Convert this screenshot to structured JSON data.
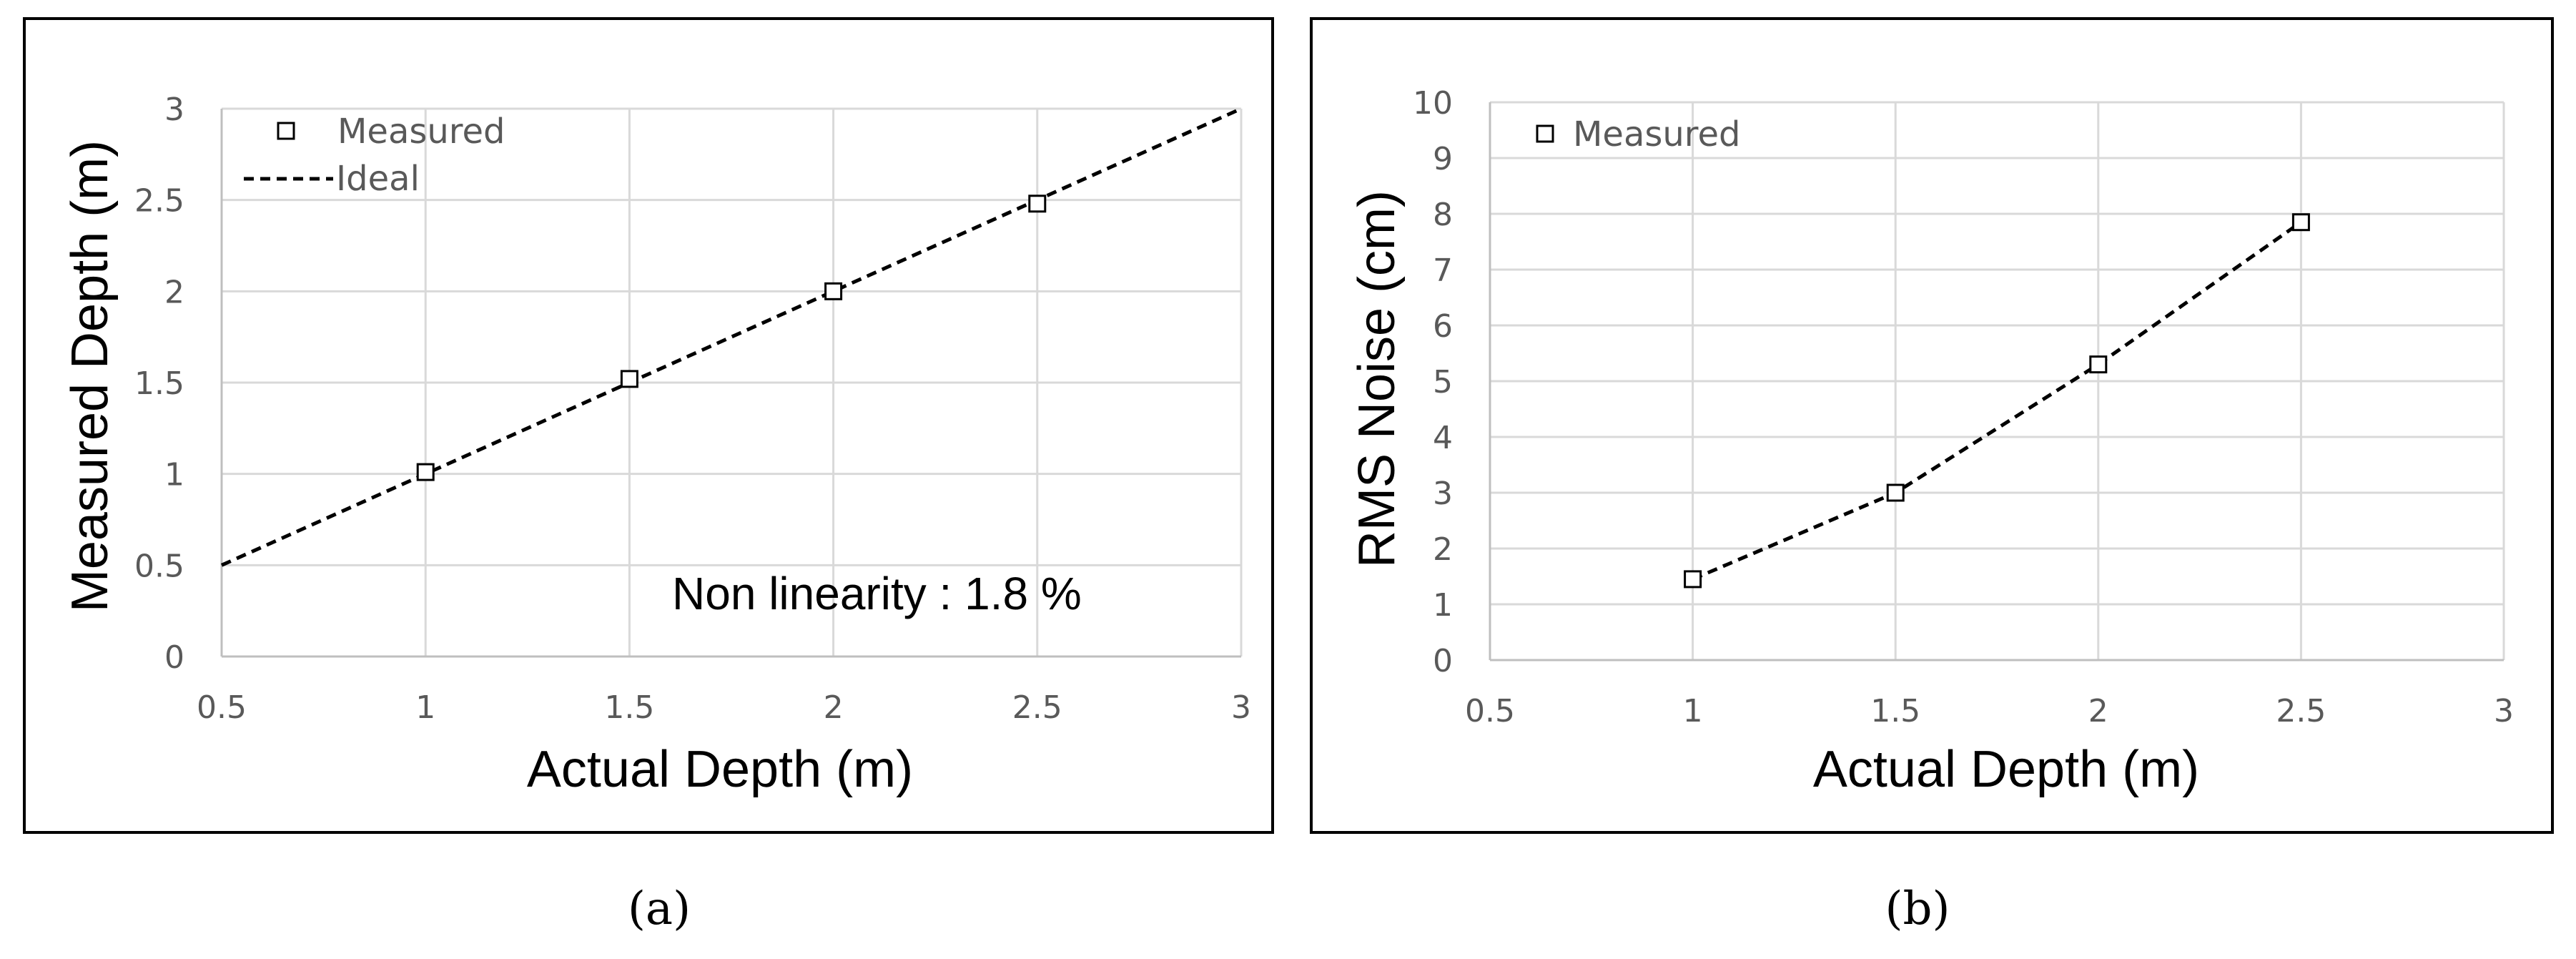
{
  "colors": {
    "grid": "#d9d9d9",
    "axis": "#bfbfbf",
    "frame": "#000000",
    "series": "#000000",
    "tick_text": "#595959"
  },
  "chart_data": [
    {
      "type": "scatter",
      "xlabel": "Actual Depth (m)",
      "ylabel": "Measured Depth (m)",
      "xlim": [
        0.5,
        3
      ],
      "ylim": [
        0,
        3
      ],
      "x_ticks": [
        0.5,
        1,
        1.5,
        2,
        2.5,
        3
      ],
      "y_ticks": [
        0,
        0.5,
        1,
        1.5,
        2,
        2.5,
        3
      ],
      "x_tick_labels": [
        "0.5",
        "1",
        "1.5",
        "2",
        "2.5",
        "3"
      ],
      "y_tick_labels": [
        "0",
        "0.5",
        "1",
        "1.5",
        "2",
        "2.5",
        "3"
      ],
      "grid": true,
      "legend_position": "top-left",
      "series": [
        {
          "name": "Measured",
          "style": "marker-square",
          "x": [
            1,
            1.5,
            2,
            2.5
          ],
          "y": [
            1.01,
            1.52,
            2.0,
            2.48
          ]
        },
        {
          "name": "Ideal",
          "style": "dashed-line",
          "x": [
            0.5,
            3
          ],
          "y": [
            0.5,
            3
          ]
        }
      ],
      "annotation": "Non linearity : 1.8 %",
      "caption": "(a)"
    },
    {
      "type": "line",
      "xlabel": "Actual Depth (m)",
      "ylabel": "RMS Noise (cm)",
      "xlim": [
        0.5,
        3
      ],
      "ylim": [
        0,
        10
      ],
      "x_ticks": [
        0.5,
        1,
        1.5,
        2,
        2.5,
        3
      ],
      "y_ticks": [
        0,
        1,
        2,
        3,
        4,
        5,
        6,
        7,
        8,
        9,
        10
      ],
      "x_tick_labels": [
        "0.5",
        "1",
        "1.5",
        "2",
        "2.5",
        "3"
      ],
      "y_tick_labels": [
        "0",
        "1",
        "2",
        "3",
        "4",
        "5",
        "6",
        "7",
        "8",
        "9",
        "10"
      ],
      "grid": true,
      "legend_position": "top-left",
      "series": [
        {
          "name": "Measured",
          "style": "marker-square-dashed",
          "x": [
            1,
            1.5,
            2,
            2.5
          ],
          "y": [
            1.45,
            3.0,
            5.3,
            7.85
          ]
        }
      ],
      "caption": "(b)"
    }
  ]
}
